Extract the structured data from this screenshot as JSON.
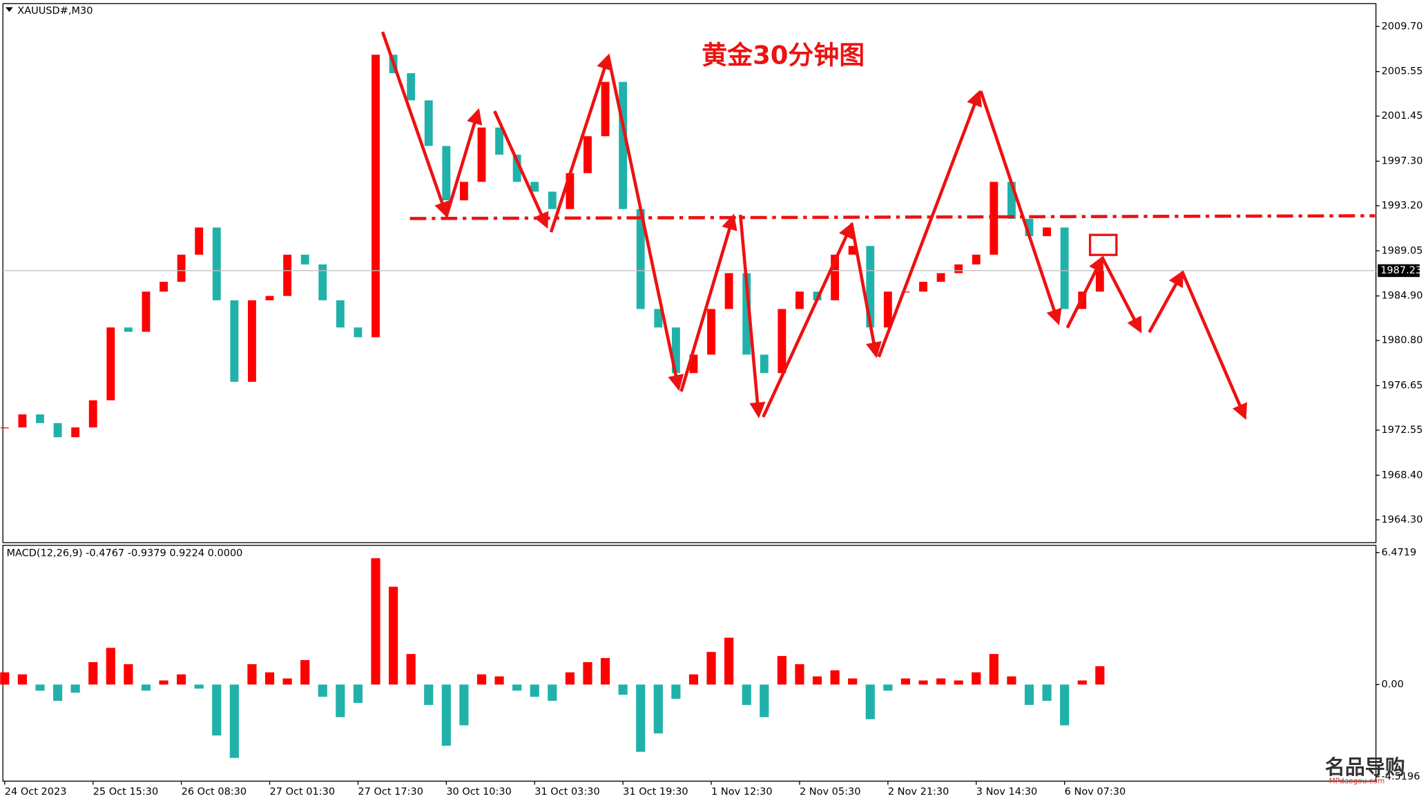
{
  "chart_data": [
    {
      "type": "candlestick",
      "title": "XAUUSD#,M30",
      "annotation": "黄金30分钟图",
      "categories": [
        "24 Oct 2023",
        null,
        null,
        null,
        null,
        "25 Oct 15:30",
        null,
        null,
        null,
        null,
        "26 Oct 08:30",
        null,
        null,
        null,
        null,
        "27 Oct 01:30",
        null,
        null,
        null,
        null,
        "27 Oct 17:30",
        null,
        null,
        null,
        null,
        "30 Oct 10:30",
        null,
        null,
        null,
        null,
        "31 Oct 03:30",
        null,
        null,
        null,
        null,
        "31 Oct 19:30",
        null,
        null,
        null,
        null,
        "1 Nov 12:30",
        null,
        null,
        null,
        null,
        "2 Nov 05:30",
        null,
        null,
        null,
        null,
        "2 Nov 21:30",
        null,
        null,
        null,
        null,
        "3 Nov 14:30",
        null,
        null,
        null,
        null,
        "6 Nov 07:30",
        null,
        null
      ],
      "values": [
        1972.8,
        1974.0,
        1973.2,
        1971.9,
        1972.8,
        1975.3,
        1982.0,
        1981.6,
        1985.3,
        1986.2,
        1988.7,
        1991.2,
        1984.5,
        1977.0,
        1984.5,
        1984.9,
        1988.7,
        1987.8,
        1984.5,
        1982.0,
        1981.1,
        2007.1,
        2005.4,
        2002.9,
        1998.7,
        1993.7,
        1995.4,
        2000.4,
        1997.9,
        1995.4,
        1994.5,
        1992.9,
        1996.2,
        1999.6,
        2004.6,
        1992.9,
        1983.7,
        1982.0,
        1977.8,
        1979.5,
        1983.7,
        1987.0,
        1979.5,
        1977.8,
        1983.7,
        1985.3,
        1984.5,
        1988.7,
        1989.5,
        1982.0,
        1985.3,
        1985.3,
        1986.2,
        1987.0,
        1987.8,
        1988.7,
        1995.4,
        1992.0,
        1990.4,
        1991.2,
        1983.7,
        1985.3,
        1987.2
      ],
      "up_color": "#ff0000",
      "down_color": "#20b2aa",
      "current_price": 1987.23,
      "ylim": [
        1962.2,
        2011.8
      ],
      "yticks": [
        {
          "value": 2009.7,
          "label": "2009.70"
        },
        2005.55,
        2001.45,
        {
          "value": 1997.3,
          "label": "1997.30"
        },
        {
          "value": 1993.2,
          "label": "1993.20"
        },
        1989.05,
        {
          "value": 1984.9,
          "label": "1984.90"
        },
        {
          "value": 1980.8,
          "label": "1980.80"
        },
        1976.65,
        1972.55,
        {
          "value": 1968.4,
          "label": "1968.40"
        },
        {
          "value": 1964.3,
          "label": "1964.30"
        }
      ],
      "grid": false
    },
    {
      "type": "bar",
      "title": "MACD(12,26,9) -0.4767 -0.9379 0.9224 0.0000",
      "values": [
        0.6,
        0.5,
        -0.3,
        -0.8,
        -0.4,
        1.1,
        1.8,
        1.0,
        -0.3,
        0.2,
        0.5,
        -0.2,
        -2.5,
        -3.6,
        1.0,
        0.6,
        0.3,
        1.2,
        -0.6,
        -1.6,
        -0.9,
        6.2,
        4.8,
        1.5,
        -1.0,
        -3.0,
        -2.0,
        0.5,
        0.4,
        -0.3,
        -0.6,
        -0.8,
        0.6,
        1.1,
        1.3,
        -0.5,
        -3.3,
        -2.4,
        -0.7,
        0.5,
        1.6,
        2.3,
        -1.0,
        -1.6,
        1.4,
        1.0,
        0.4,
        0.7,
        0.3,
        -1.7,
        -0.3,
        0.3,
        0.2,
        0.3,
        0.2,
        0.6,
        1.5,
        0.4,
        -1.0,
        -0.8,
        -2.0,
        0.2,
        0.9
      ],
      "up_color": "#ff0000",
      "down_color": "#20b2aa",
      "ylim": [
        -4.74,
        6.83
      ],
      "yticks": [
        6.4719,
        {
          "value": 0,
          "label": "0.00"
        },
        -4.5196
      ],
      "grid": false
    }
  ],
  "watermark": {
    "logo": "名品导购",
    "url": "MPdaogou.com"
  }
}
